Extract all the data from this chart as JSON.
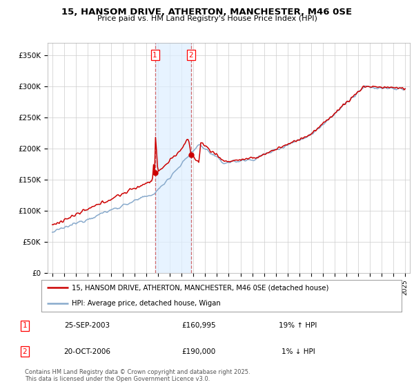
{
  "title": "15, HANSOM DRIVE, ATHERTON, MANCHESTER, M46 0SE",
  "subtitle": "Price paid vs. HM Land Registry's House Price Index (HPI)",
  "yticks": [
    0,
    50000,
    100000,
    150000,
    200000,
    250000,
    300000,
    350000
  ],
  "ytick_labels": [
    "£0",
    "£50K",
    "£100K",
    "£150K",
    "£200K",
    "£250K",
    "£300K",
    "£350K"
  ],
  "legend_line1": "15, HANSOM DRIVE, ATHERTON, MANCHESTER, M46 0SE (detached house)",
  "legend_line2": "HPI: Average price, detached house, Wigan",
  "line_color_red": "#cc0000",
  "line_color_blue": "#88aacc",
  "transaction1_date": "25-SEP-2003",
  "transaction1_price": 160995,
  "transaction1_note": "19% ↑ HPI",
  "transaction2_date": "20-OCT-2006",
  "transaction2_price": 190000,
  "transaction2_note": "1% ↓ HPI",
  "footer": "Contains HM Land Registry data © Crown copyright and database right 2025.\nThis data is licensed under the Open Government Licence v3.0.",
  "background_color": "#ffffff",
  "grid_color": "#cccccc",
  "t1_year": 2003.73,
  "t2_year": 2006.79
}
